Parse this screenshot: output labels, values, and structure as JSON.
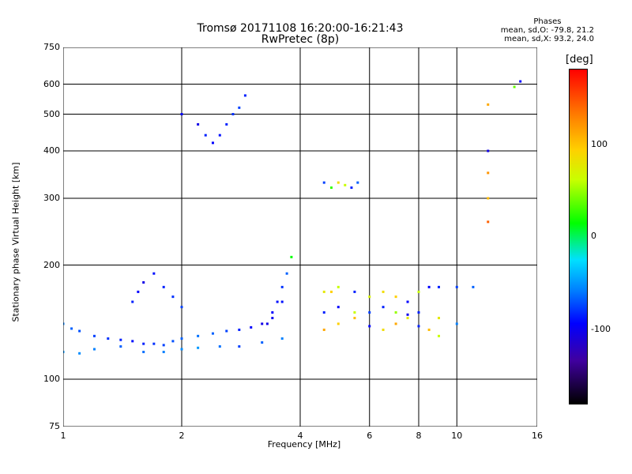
{
  "header": {
    "title_line1": "Tromsø 20171108 16:20:00-16:21:43",
    "title_line2": "RwPretec (8p)"
  },
  "stats": {
    "heading": "Phases",
    "line_o": "mean, sd,O: -79.8, 21.2",
    "line_x": "mean, sd,X:  93.2, 24.0"
  },
  "colorbar": {
    "unit": "[deg]",
    "ticks": [
      "100",
      "0",
      "-100"
    ],
    "colors": [
      "#ff0000",
      "#ff8000",
      "#ffd000",
      "#c8ff00",
      "#00ff00",
      "#00e0ff",
      "#0080ff",
      "#0000ff",
      "#4000a0",
      "#000000"
    ]
  },
  "chart_data": {
    "type": "scatter",
    "title": "Tromsø 20171108 16:20:00-16:21:43",
    "subtitle": "RwPretec (8p)",
    "xlabel": "Frequency [MHz]",
    "ylabel": "Stationary phase Virtual Height [km]",
    "xscale": "log",
    "yscale": "log",
    "xlim": [
      1,
      16
    ],
    "ylim": [
      75,
      750
    ],
    "xticks": [
      1,
      2,
      4,
      6,
      8,
      10,
      16
    ],
    "yticks": [
      75,
      100,
      200,
      300,
      400,
      500,
      600,
      750
    ],
    "grid": true,
    "series": [
      {
        "x": [
          1.0,
          1.05,
          1.1,
          1.2,
          1.3,
          1.4,
          1.5,
          1.6,
          1.7,
          1.8,
          1.9,
          2.0,
          2.2,
          2.4,
          2.6,
          2.8,
          3.0,
          3.2,
          3.4,
          3.6
        ],
        "y": [
          140,
          136,
          134,
          130,
          128,
          127,
          126,
          124,
          124,
          123,
          126,
          128,
          130,
          132,
          134,
          135,
          137,
          140,
          145,
          160
        ],
        "phase": [
          -60,
          -70,
          -75,
          -80,
          -85,
          -90,
          -95,
          -90,
          -85,
          -80,
          -75,
          -70,
          -65,
          -70,
          -80,
          -90,
          -100,
          -110,
          -105,
          -95
        ]
      },
      {
        "x": [
          1.0,
          1.1,
          1.2,
          1.4,
          1.6,
          1.8,
          2.0,
          2.2,
          2.5,
          2.8,
          3.2,
          3.6
        ],
        "y": [
          118,
          117,
          120,
          122,
          118,
          118,
          120,
          121,
          122,
          122,
          125,
          128
        ],
        "phase": [
          -50,
          -55,
          -60,
          -70,
          -65,
          -60,
          -55,
          -50,
          -65,
          -80,
          -70,
          -60
        ]
      },
      {
        "x": [
          1.5,
          1.55,
          1.6,
          1.7,
          1.8,
          1.9,
          2.0
        ],
        "y": [
          160,
          170,
          180,
          190,
          175,
          165,
          155
        ],
        "phase": [
          -90,
          -100,
          -110,
          -95,
          -90,
          -85,
          -80
        ]
      },
      {
        "x": [
          2.0,
          2.2,
          2.3,
          2.4,
          2.5,
          2.6,
          2.7,
          2.8,
          2.9
        ],
        "y": [
          500,
          470,
          440,
          420,
          440,
          470,
          500,
          520,
          560
        ],
        "phase": [
          -100,
          -110,
          -90,
          -100,
          -95,
          -90,
          -85,
          -80,
          -90
        ]
      },
      {
        "x": [
          3.3,
          3.4,
          3.5,
          3.6,
          3.7,
          3.8
        ],
        "y": [
          140,
          150,
          160,
          175,
          190,
          210
        ],
        "phase": [
          -110,
          -100,
          -95,
          -85,
          -70,
          20
        ]
      },
      {
        "x": [
          4.6,
          4.8,
          5.0,
          5.2,
          5.4,
          5.6
        ],
        "y": [
          330,
          320,
          330,
          325,
          320,
          330
        ],
        "phase": [
          -80,
          30,
          90,
          60,
          -90,
          -70
        ]
      },
      {
        "x": [
          4.6,
          4.8,
          5.0,
          5.5,
          6.0,
          6.5,
          7.0,
          7.5,
          8.0,
          8.5,
          9.0,
          10.0,
          11.0
        ],
        "y": [
          170,
          170,
          175,
          170,
          165,
          170,
          165,
          160,
          170,
          175,
          175,
          175,
          175
        ],
        "phase": [
          80,
          100,
          60,
          -90,
          70,
          90,
          100,
          -100,
          60,
          -100,
          -90,
          -80,
          -70
        ]
      },
      {
        "x": [
          4.6,
          5.0,
          5.5,
          6.0,
          6.5,
          7.0,
          7.5,
          8.0,
          8.5,
          9.0
        ],
        "y": [
          135,
          140,
          145,
          138,
          135,
          140,
          145,
          138,
          135,
          130
        ],
        "phase": [
          120,
          100,
          110,
          -100,
          90,
          120,
          80,
          -90,
          110,
          60
        ]
      },
      {
        "x": [
          4.6,
          5.0,
          5.5,
          6.0,
          6.5,
          7.0,
          7.5,
          8.0,
          9.0,
          10.0
        ],
        "y": [
          150,
          155,
          150,
          150,
          155,
          150,
          148,
          150,
          145,
          140
        ],
        "phase": [
          -90,
          -100,
          60,
          -80,
          -90,
          50,
          -110,
          -90,
          80,
          -60
        ]
      },
      {
        "x": [
          12.0,
          12.0,
          12.0,
          12.0,
          12.0,
          14.0,
          14.5
        ],
        "y": [
          400,
          350,
          300,
          260,
          530,
          590,
          610
        ],
        "phase": [
          -110,
          130,
          110,
          150,
          120,
          40,
          -100
        ]
      }
    ]
  }
}
